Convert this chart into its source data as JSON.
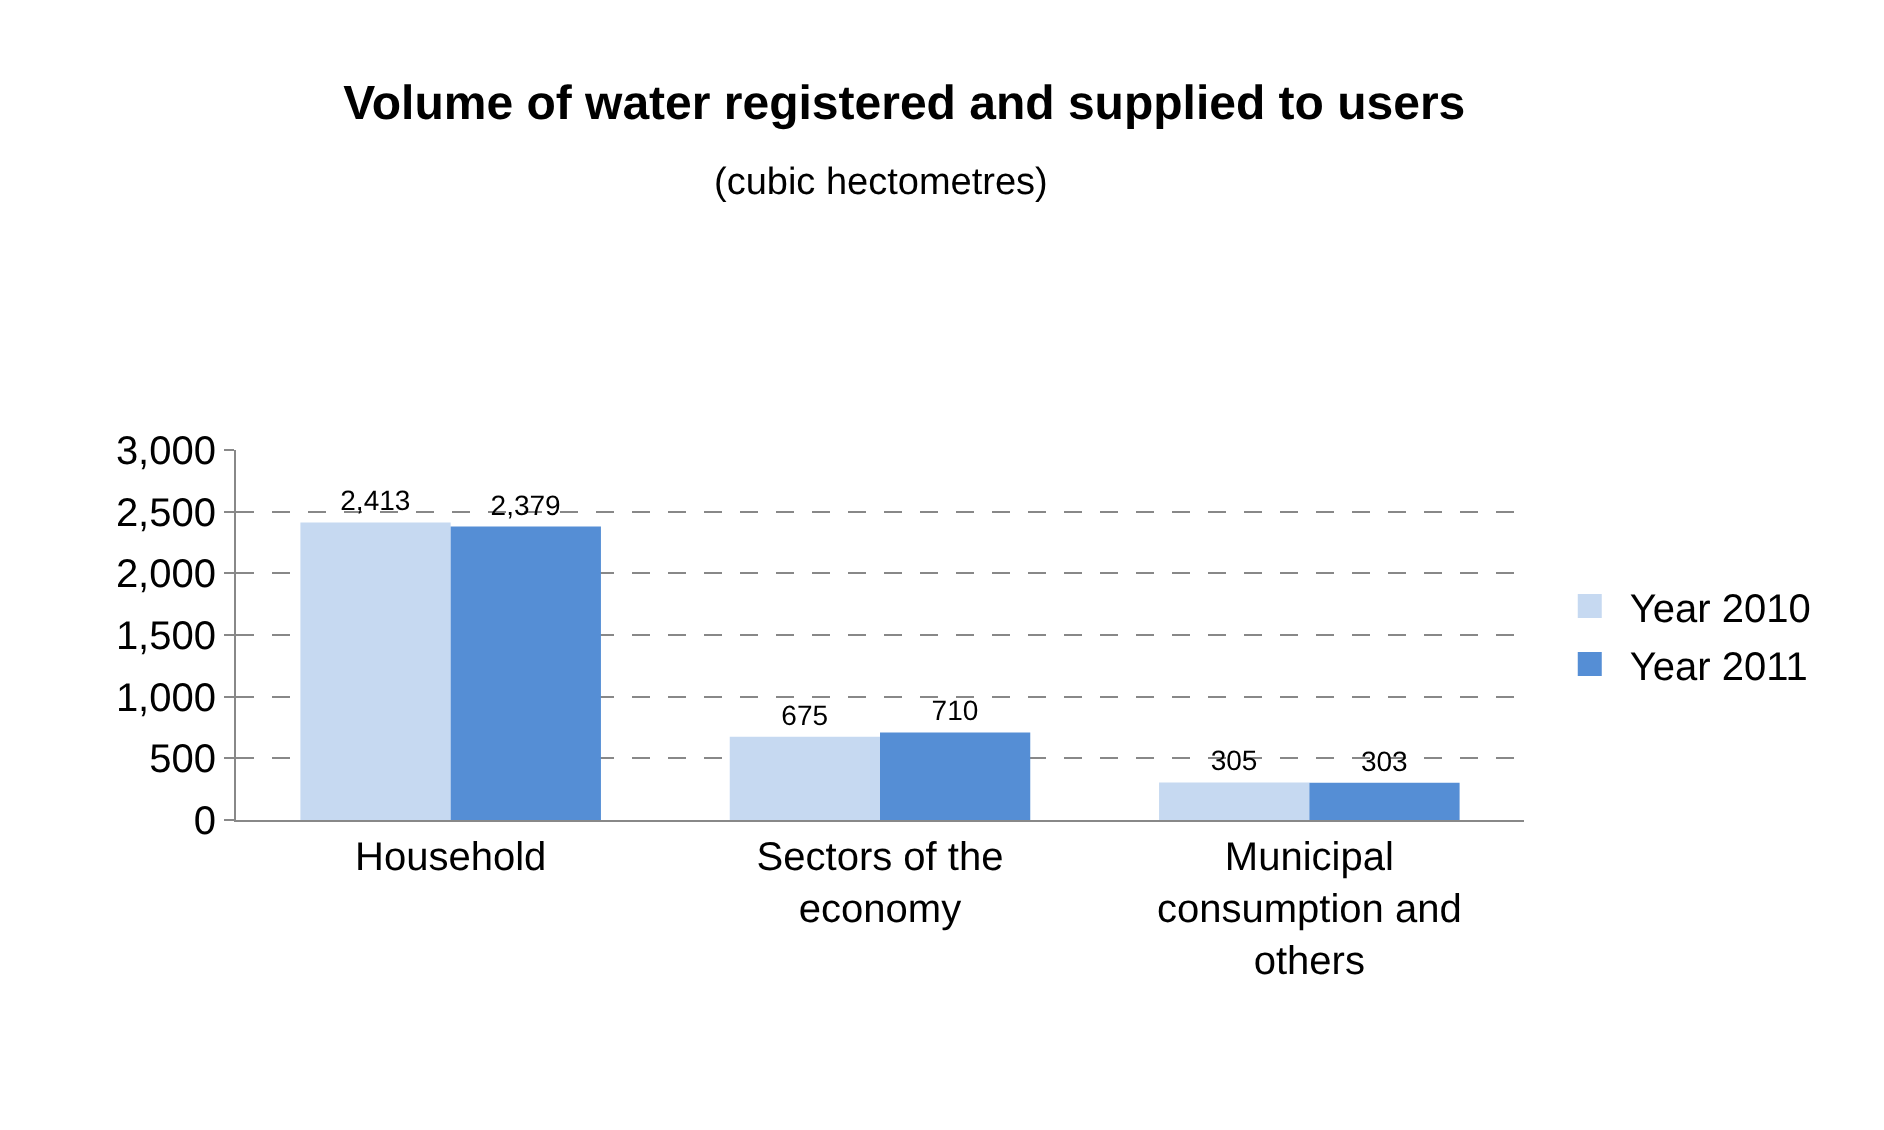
{
  "chart_data": {
    "type": "bar",
    "title": "Volume of water registered and supplied to users",
    "subtitle": "(cubic hectometres)",
    "categories": [
      "Household",
      "Sectors of the economy",
      "Municipal consumption and others"
    ],
    "series": [
      {
        "name": "Year 2010",
        "color": "#c6d9f1",
        "values": [
          2413,
          675,
          305
        ],
        "value_labels": [
          "2,413",
          "675",
          "305"
        ]
      },
      {
        "name": "Year 2011",
        "color": "#558ed5",
        "values": [
          2379,
          710,
          303
        ],
        "value_labels": [
          "2,379",
          "710",
          "303"
        ]
      }
    ],
    "ylim": [
      0,
      3000
    ],
    "yticks": [
      0,
      500,
      {
        "value": 1000,
        "label": "1,000"
      },
      {
        "value": 1500,
        "label": "1,500"
      },
      {
        "value": 2000,
        "label": "2,000"
      },
      {
        "value": 2500,
        "label": "2,500"
      },
      {
        "value": 3000,
        "label": "3,000"
      }
    ],
    "grid": "y",
    "legend": "right"
  }
}
